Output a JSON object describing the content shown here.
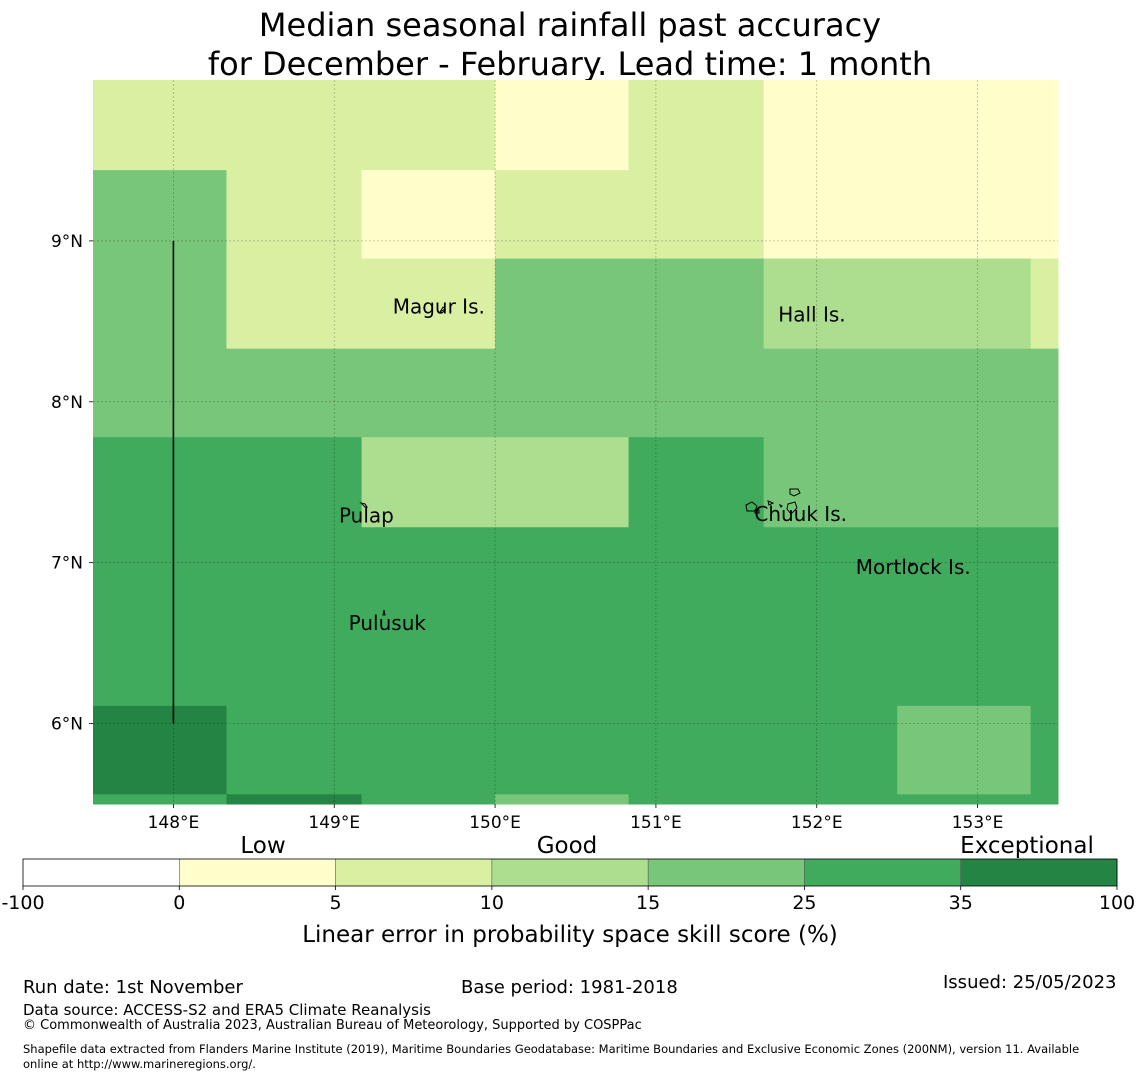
{
  "title": {
    "line1": "Median seasonal rainfall past accuracy",
    "line2": "for December - February. Lead time: 1 month"
  },
  "map": {
    "lon_range": [
      147.5,
      153.5
    ],
    "lat_range": [
      5.5,
      10.0
    ],
    "lon_ticks": [
      {
        "value": 148,
        "label": "148°E"
      },
      {
        "value": 149,
        "label": "149°E"
      },
      {
        "value": 150,
        "label": "150°E"
      },
      {
        "value": 151,
        "label": "151°E"
      },
      {
        "value": 152,
        "label": "152°E"
      },
      {
        "value": 153,
        "label": "153°E"
      }
    ],
    "lat_ticks": [
      {
        "value": 9,
        "label": "9°N"
      },
      {
        "value": 8,
        "label": "8°N"
      },
      {
        "value": 7,
        "label": "7°N"
      },
      {
        "value": 6,
        "label": "6°N"
      }
    ],
    "places": [
      {
        "name": "Magur Is.",
        "lon": 149.65,
        "lat": 8.55
      },
      {
        "name": "Hall Is.",
        "lon": 151.97,
        "lat": 8.5
      },
      {
        "name": "Pulap",
        "lon": 149.2,
        "lat": 7.25
      },
      {
        "name": "Chuuk Is.",
        "lon": 151.9,
        "lat": 7.26
      },
      {
        "name": "Mortlock Is.",
        "lon": 152.6,
        "lat": 6.93
      },
      {
        "name": "Pulusuk",
        "lon": 149.33,
        "lat": 6.58
      }
    ],
    "boundary_line": {
      "lon": 148.0,
      "lat_from": 6.0,
      "lat_to": 9.0
    }
  },
  "grid": {
    "cell_lon_edges": [
      147.5,
      148.33,
      149.17,
      150.0,
      150.83,
      151.67,
      152.5,
      153.33,
      153.5
    ],
    "cell_lat_edges": [
      10.0,
      9.44,
      8.89,
      8.33,
      7.78,
      7.22,
      6.67,
      6.11,
      5.56,
      5.5
    ],
    "category_colors": [
      "#ffffff",
      "#ffffcc",
      "#d9f0a3",
      "#addd8e",
      "#78c679",
      "#41ab5d",
      "#238443"
    ],
    "cells": [
      [
        2,
        2,
        2,
        1,
        2,
        1,
        1,
        1
      ],
      [
        4,
        2,
        1,
        2,
        2,
        1,
        1,
        1
      ],
      [
        4,
        2,
        2,
        4,
        4,
        3,
        3,
        2
      ],
      [
        4,
        4,
        4,
        4,
        4,
        4,
        4,
        4
      ],
      [
        5,
        5,
        3,
        3,
        5,
        4,
        4,
        4
      ],
      [
        5,
        5,
        5,
        5,
        5,
        5,
        5,
        5
      ],
      [
        5,
        5,
        5,
        5,
        5,
        5,
        5,
        5
      ],
      [
        6,
        5,
        5,
        5,
        5,
        5,
        4,
        5
      ],
      [
        5,
        6,
        5,
        4,
        5,
        5,
        5,
        5
      ]
    ]
  },
  "colorbar": {
    "categories": [
      "Low",
      "Good",
      "Exceptional"
    ],
    "boundaries": [
      "-100",
      "0",
      "5",
      "10",
      "15",
      "25",
      "35",
      "100"
    ],
    "label": "Linear error in probability space skill score (%)"
  },
  "footer": {
    "run_date": "Run date: 1st November",
    "base_period": "Base period: 1981-2018",
    "issued": "Issued: 25/05/2023",
    "data_source": "Data source: ACCESS-S2 and ERA5 Climate Reanalysis",
    "copyright": "© Commonwealth of Australia 2023, Australian Bureau of Meteorology, Supported by COSPPac",
    "shapefile_line1": "Shapefile data extracted from Flanders Marine Institute (2019), Maritime Boundaries Geodatabase: Maritime Boundaries and Exclusive Economic Zones (200NM), version 11. Available",
    "shapefile_line2": "online at http://www.marineregions.org/."
  }
}
